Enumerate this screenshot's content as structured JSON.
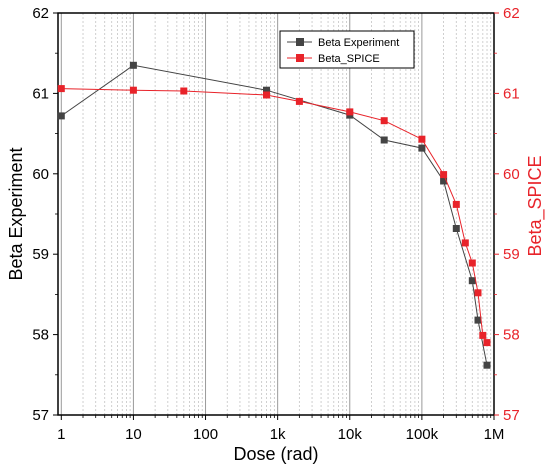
{
  "chart_data": {
    "type": "line",
    "xlabel": "Dose (rad)",
    "ylabel_left": "Beta Experiment",
    "ylabel_right": "Beta_SPICE",
    "x_scale": "log",
    "xlim": [
      0.9,
      1000000
    ],
    "ylim": [
      57,
      62
    ],
    "x_tick_values": [
      1,
      10,
      100,
      1000,
      10000,
      100000,
      1000000
    ],
    "x_tick_labels": [
      "1",
      "10",
      "100",
      "1k",
      "10k",
      "100k",
      "1M"
    ],
    "y_ticks_left": [
      "57",
      "58",
      "59",
      "60",
      "61",
      "62"
    ],
    "y_ticks_right": [
      "57",
      "58",
      "59",
      "60",
      "61",
      "62"
    ],
    "grid": "vertical major and minor dashed lines",
    "legend_position": "top-center",
    "colors": {
      "experiment": "#444444",
      "spice": "#e8232a",
      "right_axis": "#e8232a"
    },
    "series": [
      {
        "name": "Beta Experiment",
        "color": "#444444",
        "x": [
          1,
          10,
          700,
          10000,
          30000,
          100000,
          200000,
          300000,
          500000,
          600000,
          800000
        ],
        "y": [
          60.72,
          61.35,
          61.04,
          60.73,
          60.42,
          60.32,
          59.91,
          59.32,
          58.67,
          58.18,
          57.62
        ]
      },
      {
        "name": "Beta_SPICE",
        "color": "#e8232a",
        "x": [
          1,
          10,
          50,
          700,
          2000,
          10000,
          30000,
          100000,
          200000,
          300000,
          400000,
          500000,
          600000,
          700000,
          800000
        ],
        "y": [
          61.06,
          61.04,
          61.03,
          60.98,
          60.9,
          60.77,
          60.66,
          60.43,
          59.99,
          59.62,
          59.14,
          58.89,
          58.52,
          57.99,
          57.9
        ]
      }
    ]
  }
}
